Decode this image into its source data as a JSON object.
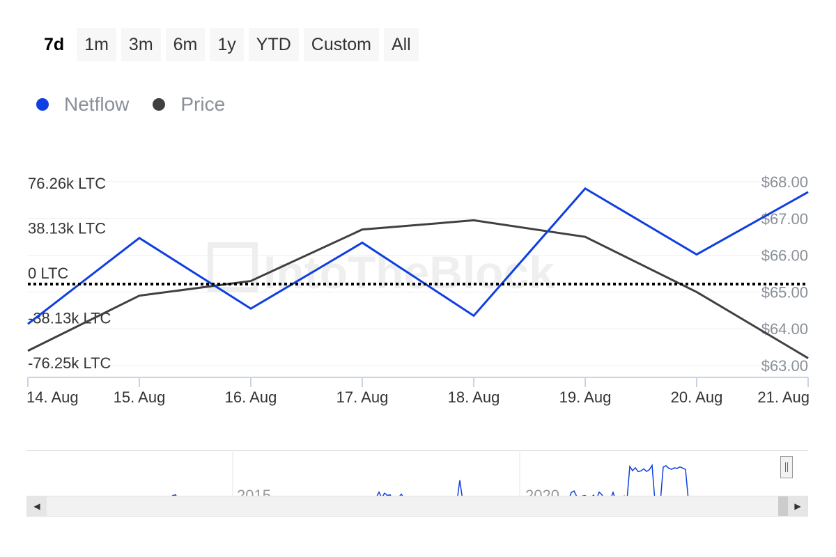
{
  "range_buttons": [
    {
      "label": "7d",
      "active": true
    },
    {
      "label": "1m",
      "active": false
    },
    {
      "label": "3m",
      "active": false
    },
    {
      "label": "6m",
      "active": false
    },
    {
      "label": "1y",
      "active": false
    },
    {
      "label": "YTD",
      "active": false
    },
    {
      "label": "Custom",
      "active": false
    },
    {
      "label": "All",
      "active": false
    }
  ],
  "legend": [
    {
      "label": "Netflow",
      "color": "#0f3fe0"
    },
    {
      "label": "Price",
      "color": "#404040"
    }
  ],
  "watermark": "IntoTheBlock",
  "chart_data": {
    "type": "line",
    "categories": [
      "14. Aug",
      "15. Aug",
      "16. Aug",
      "17. Aug",
      "18. Aug",
      "19. Aug",
      "20. Aug",
      "21. Aug"
    ],
    "series": [
      {
        "name": "Netflow",
        "axis": "left",
        "color": "#0f3fe0",
        "values": [
          -38000,
          35000,
          -25000,
          31000,
          -31000,
          77000,
          21000,
          74000
        ]
      },
      {
        "name": "Price",
        "axis": "right",
        "color": "#404040",
        "values": [
          63.4,
          64.9,
          65.3,
          66.7,
          66.95,
          66.5,
          65.0,
          63.2
        ]
      }
    ],
    "left_axis": {
      "ticks": [
        -76250,
        -38130,
        0,
        38130,
        76260
      ],
      "tick_labels": [
        "-76.25k LTC",
        "-38.13k LTC",
        "0 LTC",
        "38.13k LTC",
        "76.26k LTC"
      ],
      "ylim": [
        -76250,
        76260
      ]
    },
    "right_axis": {
      "ticks": [
        63,
        64,
        65,
        66,
        67,
        68
      ],
      "tick_labels": [
        "$63.00",
        "$64.00",
        "$65.00",
        "$66.00",
        "$67.00",
        "$68.00"
      ],
      "ylim": [
        63,
        68
      ]
    },
    "zero_line": {
      "value": 0,
      "style": "dotted",
      "color": "#000000"
    },
    "grid": true,
    "legend_position": "top-left"
  },
  "navigator": {
    "year_labels": [
      "2015",
      "2020"
    ],
    "series_color": "#0f3fe0"
  }
}
